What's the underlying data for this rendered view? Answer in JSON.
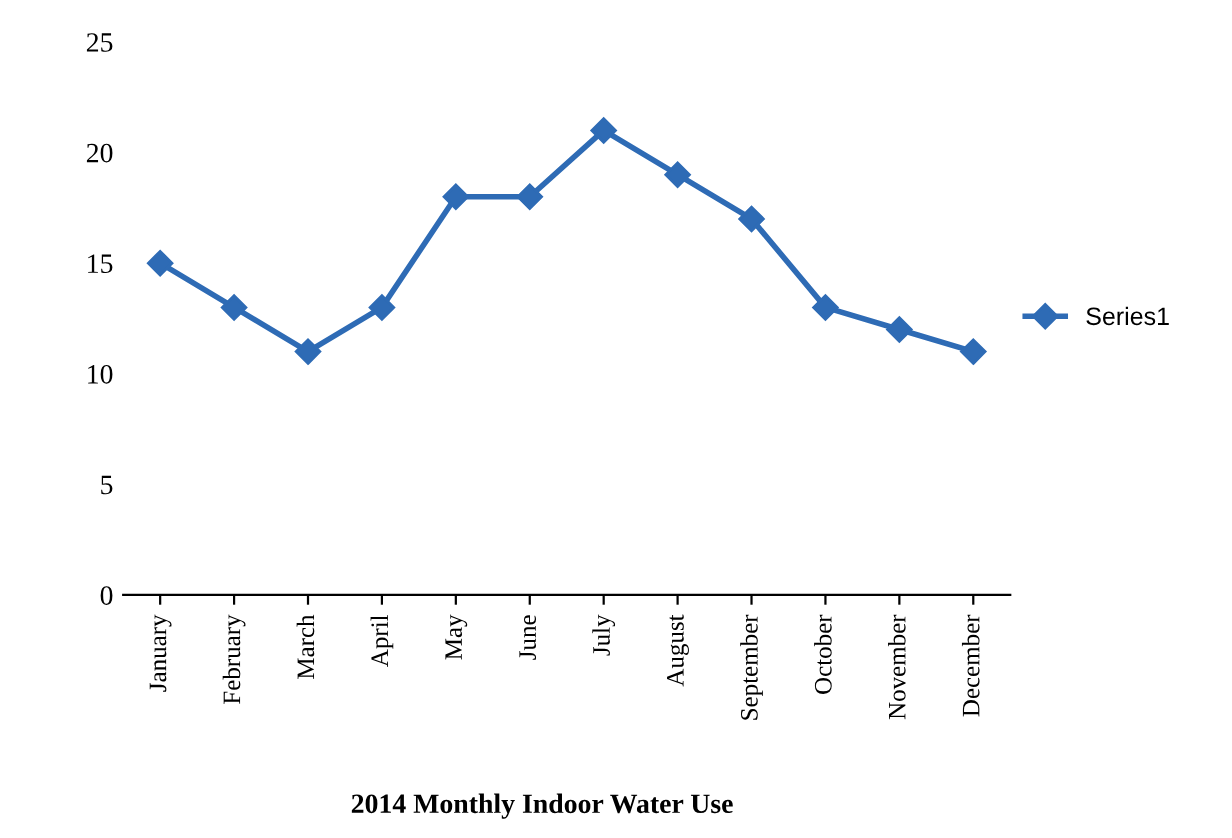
{
  "chart_data": {
    "type": "line",
    "xlabel": "2014 Monthly Indoor Water Use",
    "categories": [
      "January",
      "February",
      "March",
      "April",
      "May",
      "June",
      "July",
      "August",
      "September",
      "October",
      "November",
      "December"
    ],
    "series": [
      {
        "name": "Series1",
        "color": "#2e6bb5",
        "values": [
          15,
          13,
          11,
          13,
          18,
          18,
          21,
          19,
          17,
          13,
          12,
          11
        ]
      }
    ],
    "ylim": [
      0,
      25
    ],
    "yticks": [
      0,
      5,
      10,
      15,
      20,
      25
    ],
    "grid": false,
    "legend": "right",
    "marker": "diamond",
    "line_style": "solid"
  }
}
